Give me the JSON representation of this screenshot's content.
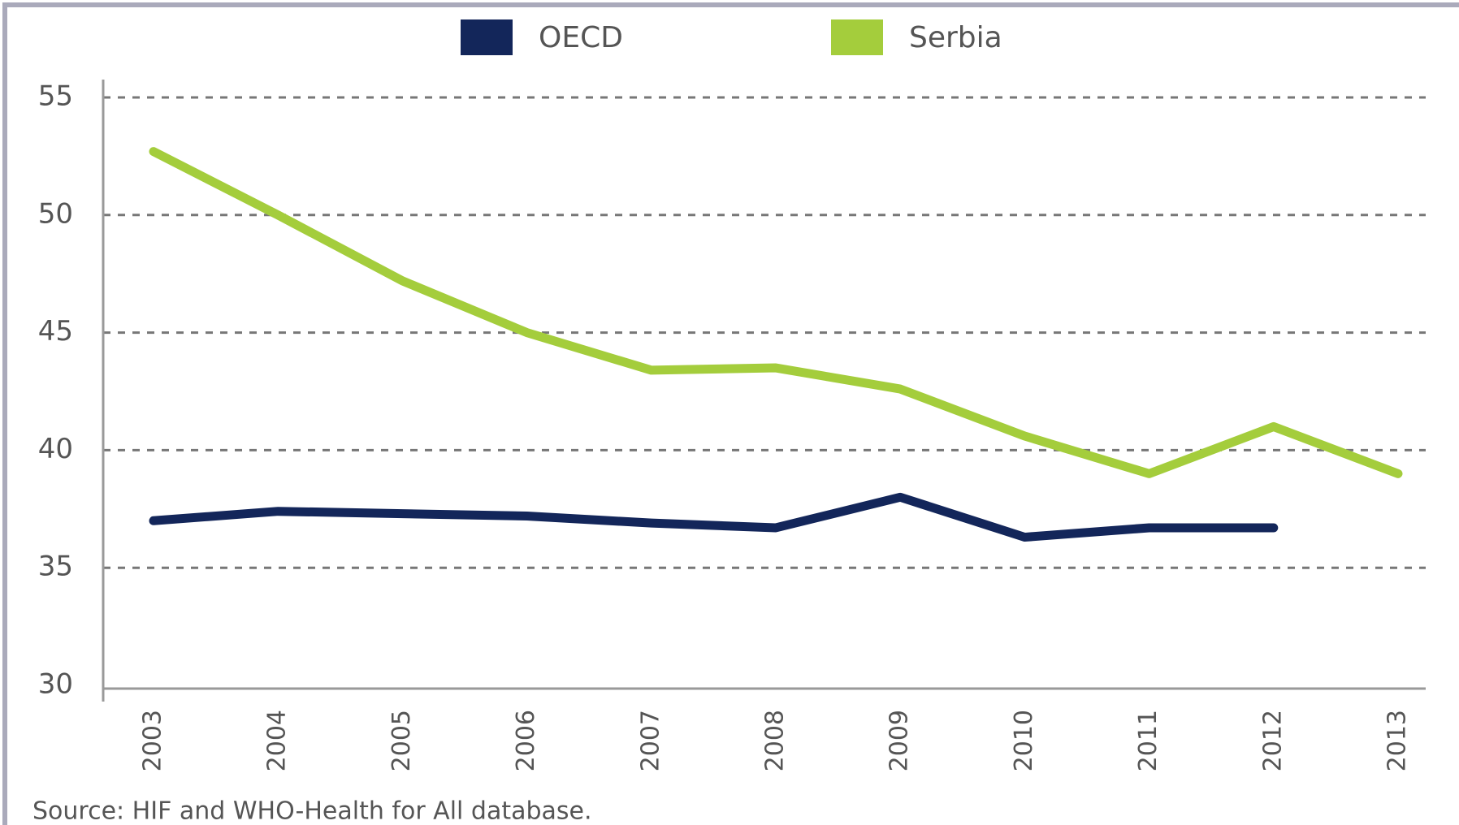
{
  "chart_data": {
    "type": "line",
    "categories": [
      "2003",
      "2004",
      "2005",
      "2006",
      "2007",
      "2008",
      "2009",
      "2010",
      "2011",
      "2012",
      "2013"
    ],
    "series": [
      {
        "name": "OECD",
        "color": "#13265a",
        "values": [
          37.0,
          37.4,
          37.3,
          37.2,
          36.9,
          36.7,
          38.0,
          36.3,
          36.7,
          36.7,
          null
        ]
      },
      {
        "name": "Serbia",
        "color": "#a4cd3c",
        "values": [
          52.7,
          50.0,
          47.2,
          45.0,
          43.4,
          43.5,
          42.6,
          40.6,
          39.0,
          41.0,
          39.0
        ]
      }
    ],
    "ylim": [
      30,
      55
    ],
    "yticks": [
      30,
      35,
      40,
      45,
      50,
      55
    ],
    "grid": true,
    "source": "Source: HIF and WHO-Health for All database."
  }
}
